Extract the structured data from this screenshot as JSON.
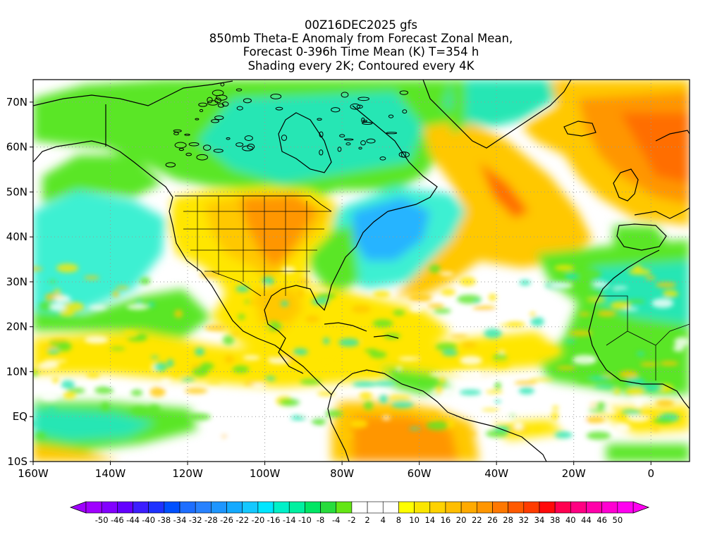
{
  "header": {
    "line1": "00Z16DEC2025 gfs",
    "line2": "850mb Theta-E Anomaly from Forecast Zonal Mean,",
    "line3": "Forecast 0-396h Time Mean (K) T=354 h",
    "line4": "Shading every 2K; Contoured every 4K"
  },
  "map": {
    "lon_range": [
      -160,
      10
    ],
    "lat_range": [
      -10,
      75
    ],
    "lat_ticks": [
      {
        "value": 70,
        "label": "70N"
      },
      {
        "value": 60,
        "label": "60N"
      },
      {
        "value": 50,
        "label": "50N"
      },
      {
        "value": 40,
        "label": "40N"
      },
      {
        "value": 30,
        "label": "30N"
      },
      {
        "value": 20,
        "label": "20N"
      },
      {
        "value": 10,
        "label": "10N"
      },
      {
        "value": 0,
        "label": "EQ"
      },
      {
        "value": -10,
        "label": "10S"
      }
    ],
    "lon_ticks": [
      {
        "value": -160,
        "label": "160W"
      },
      {
        "value": -140,
        "label": "140W"
      },
      {
        "value": -120,
        "label": "120W"
      },
      {
        "value": -100,
        "label": "100W"
      },
      {
        "value": -80,
        "label": "80W"
      },
      {
        "value": -60,
        "label": "60W"
      },
      {
        "value": -40,
        "label": "40W"
      },
      {
        "value": -20,
        "label": "20W"
      },
      {
        "value": 0,
        "label": "0"
      }
    ]
  },
  "colorbar": {
    "labels": [
      "-50",
      "-46",
      "-44",
      "-40",
      "-38",
      "-34",
      "-32",
      "-28",
      "-26",
      "-22",
      "-20",
      "-16",
      "-14",
      "-10",
      "-8",
      "-4",
      "-2",
      "2",
      "4",
      "8",
      "10",
      "14",
      "16",
      "20",
      "22",
      "26",
      "28",
      "32",
      "34",
      "38",
      "40",
      "44",
      "46",
      "50"
    ],
    "colors": [
      "#a000ff",
      "#8200ff",
      "#6400ff",
      "#3c1eff",
      "#1e32ff",
      "#0050ff",
      "#1e6eff",
      "#2882ff",
      "#1e96ff",
      "#14aaff",
      "#14c8ff",
      "#00e6ff",
      "#00f0c8",
      "#00f0a0",
      "#00e664",
      "#28dc3c",
      "#64e614",
      "#ffffff",
      "#ffffff",
      "#ffffff",
      "#ffff00",
      "#fae600",
      "#ffd200",
      "#ffbe00",
      "#ffaa00",
      "#ff9600",
      "#ff7800",
      "#ff5a00",
      "#ff3c00",
      "#ff0a0a",
      "#ff0050",
      "#ff0082",
      "#ff00aa",
      "#ff00d2",
      "#ff00f0"
    ]
  },
  "field_colors": {
    "green": "#5ae628",
    "cyan": "#28e6b4",
    "lightcyan": "#3cf0d2",
    "blue": "#28b4ff",
    "yellow": "#ffe600",
    "gold": "#ffc800",
    "orange": "#ff9600",
    "darkorange": "#ff6e00"
  }
}
